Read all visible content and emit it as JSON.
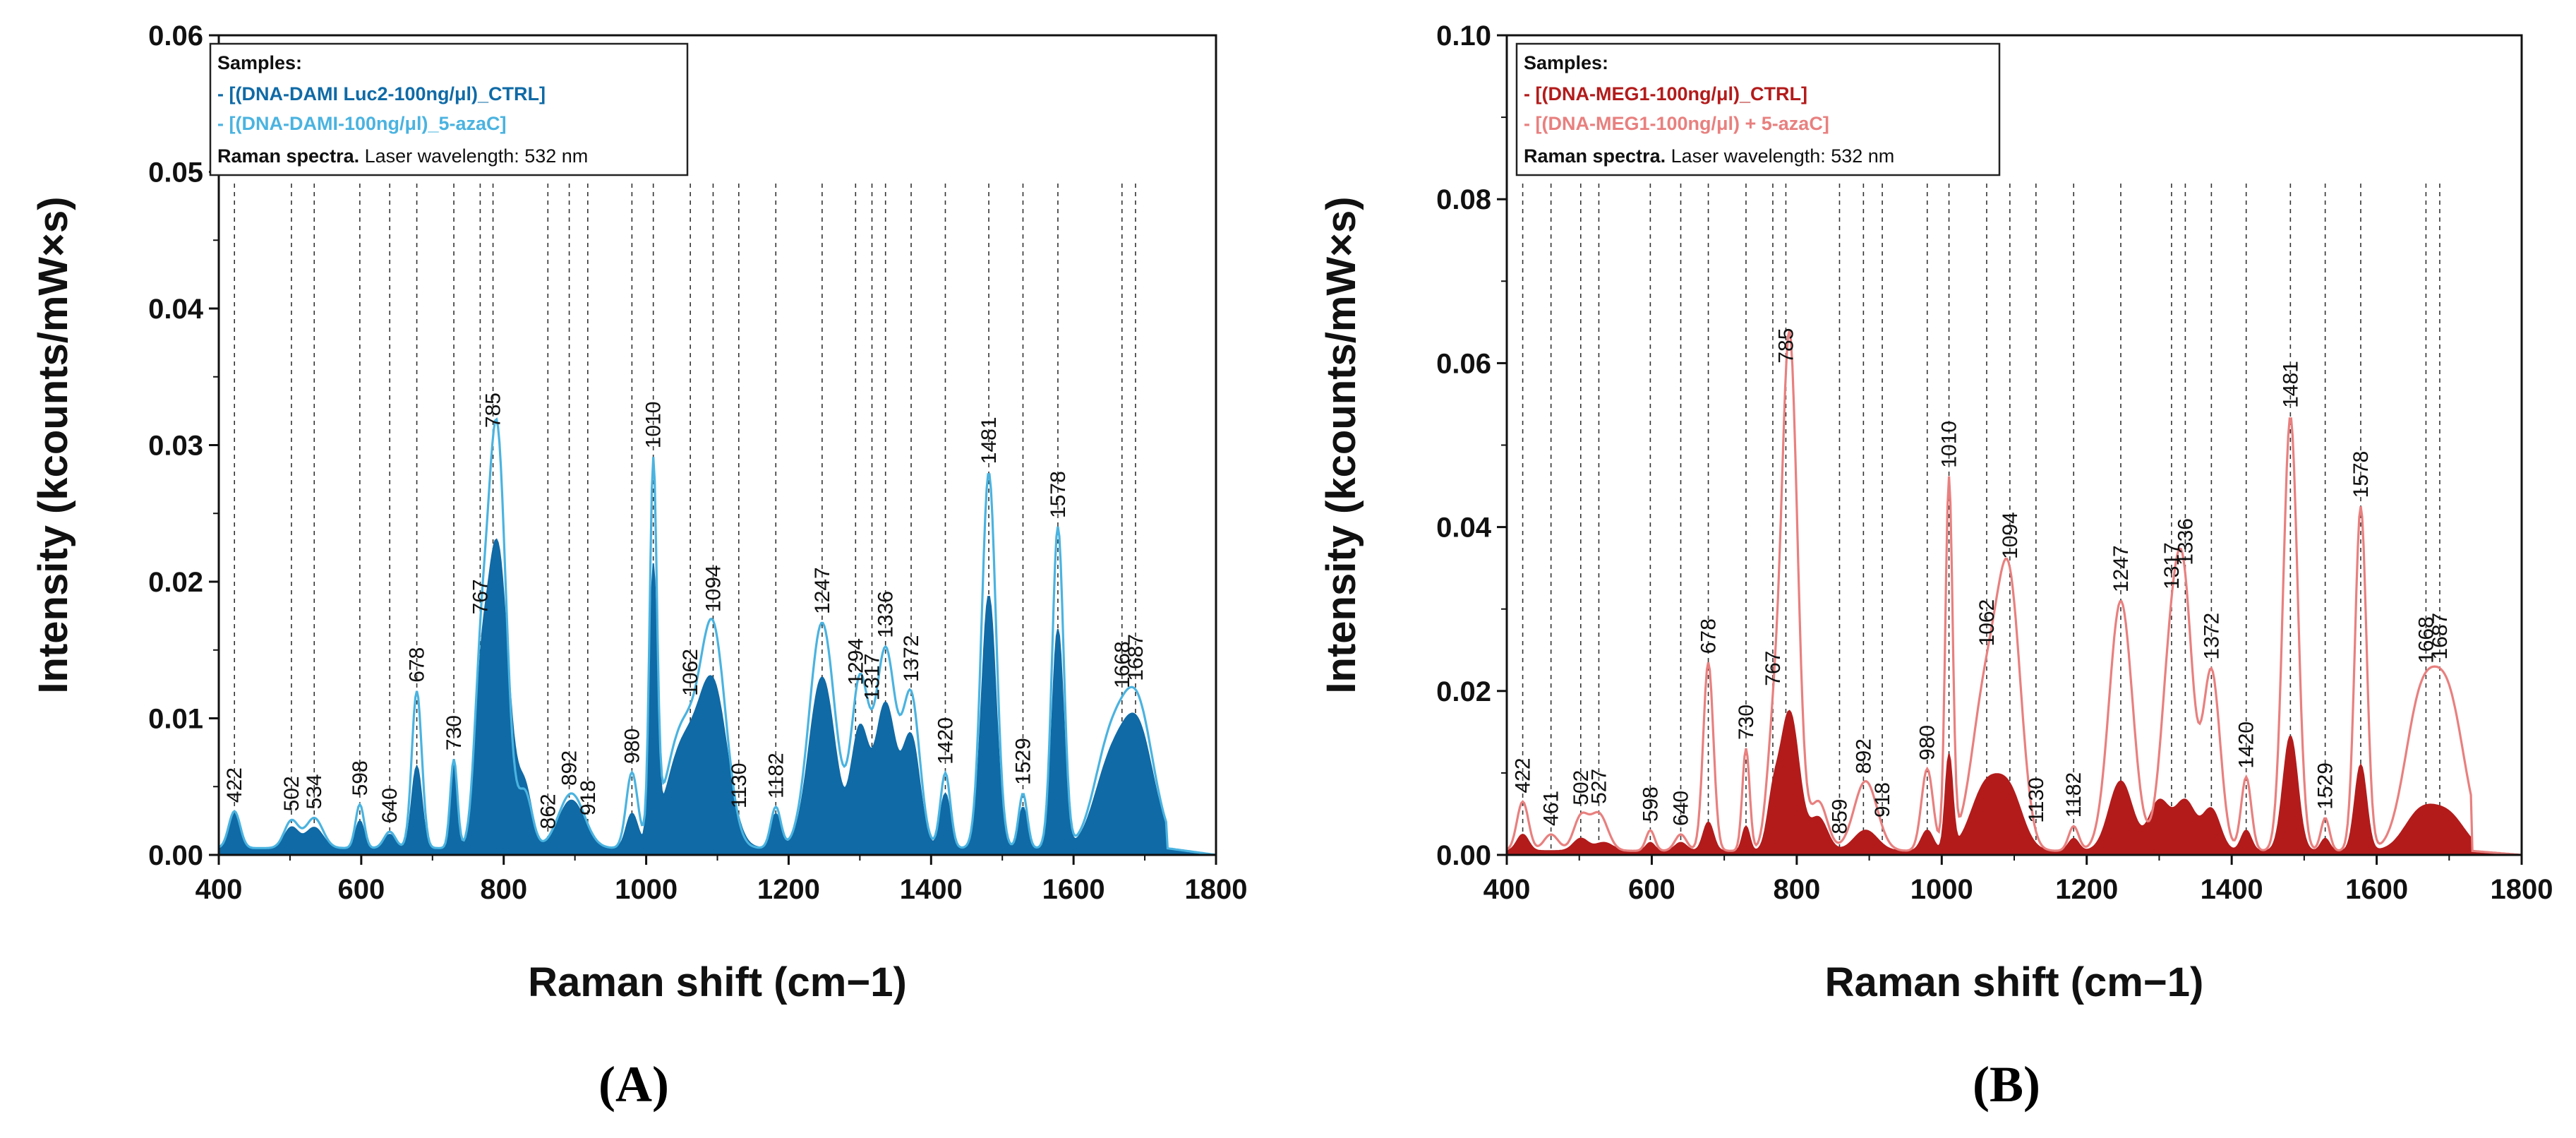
{
  "chart_data": [
    {
      "type": "area",
      "panel_label": "(A)",
      "xlabel": "Raman shift (cm−1)",
      "ylabel": "Intensity (kcounts/mW×s)",
      "xlim": [
        400,
        1800
      ],
      "ylim": [
        0,
        0.06
      ],
      "xticks": [
        400,
        600,
        800,
        1000,
        1200,
        1400,
        1600,
        1800
      ],
      "yticks": [
        0.0,
        0.01,
        0.02,
        0.03,
        0.04,
        0.05,
        0.06
      ],
      "ytick_labels": [
        "0.00",
        "0.01",
        "0.02",
        "0.03",
        "0.04",
        "0.05",
        "0.06"
      ],
      "grid": false,
      "legend": {
        "placement": "top-left",
        "heading": "Samples:",
        "entries": [
          "- [(DNA-DAMI Luc2-100ng/μl)_CTRL]",
          "- [(DNA-DAMI-100ng/μl)_5-azaC]"
        ],
        "footer_bold": "Raman spectra.",
        "footer": " Laser wavelength: 532 nm"
      },
      "peak_labels": [
        422,
        502,
        534,
        598,
        640,
        678,
        730,
        767,
        785,
        862,
        892,
        918,
        980,
        1010,
        1062,
        1094,
        1130,
        1182,
        1247,
        1294,
        1317,
        1336,
        1372,
        1420,
        1481,
        1529,
        1578,
        1668,
        1687
      ],
      "baseline": 0.0005,
      "series": [
        {
          "name": "- [(DNA-DAMI Luc2-100ng/μl)_CTRL]",
          "color": "#0f6aa6",
          "style": "filled",
          "bands": [
            [
              422,
              0.0025,
              8
            ],
            [
              502,
              0.0015,
              10
            ],
            [
              534,
              0.0015,
              12
            ],
            [
              598,
              0.002,
              6
            ],
            [
              640,
              0.001,
              8
            ],
            [
              678,
              0.006,
              7
            ],
            [
              730,
              0.0065,
              5
            ],
            [
              767,
              0.006,
              8
            ],
            [
              790,
              0.0225,
              16
            ],
            [
              830,
              0.004,
              10
            ],
            [
              895,
              0.0035,
              18
            ],
            [
              980,
              0.0025,
              8
            ],
            [
              1010,
              0.0195,
              5
            ],
            [
              1050,
              0.007,
              22
            ],
            [
              1094,
              0.0115,
              20
            ],
            [
              1182,
              0.0025,
              7
            ],
            [
              1247,
              0.0125,
              18
            ],
            [
              1300,
              0.0085,
              12
            ],
            [
              1336,
              0.0105,
              14
            ],
            [
              1372,
              0.008,
              12
            ],
            [
              1420,
              0.004,
              7
            ],
            [
              1481,
              0.0185,
              10
            ],
            [
              1529,
              0.003,
              6
            ],
            [
              1578,
              0.016,
              8
            ],
            [
              1650,
              0.0055,
              22
            ],
            [
              1690,
              0.0085,
              22
            ]
          ]
        },
        {
          "name": "- [(DNA-DAMI-100ng/μl)_5-azaC]",
          "color": "#4ab3e0",
          "style": "line",
          "bands": [
            [
              422,
              0.0027,
              8
            ],
            [
              502,
              0.002,
              10
            ],
            [
              534,
              0.0022,
              12
            ],
            [
              598,
              0.0032,
              6
            ],
            [
              640,
              0.0012,
              8
            ],
            [
              678,
              0.0115,
              7
            ],
            [
              730,
              0.0065,
              5
            ],
            [
              767,
              0.01,
              9
            ],
            [
              790,
              0.031,
              13
            ],
            [
              830,
              0.004,
              10
            ],
            [
              895,
              0.004,
              18
            ],
            [
              980,
              0.0055,
              8
            ],
            [
              1010,
              0.027,
              5
            ],
            [
              1050,
              0.0085,
              22
            ],
            [
              1094,
              0.0155,
              18
            ],
            [
              1182,
              0.003,
              7
            ],
            [
              1247,
              0.0165,
              18
            ],
            [
              1300,
              0.012,
              12
            ],
            [
              1336,
              0.0145,
              14
            ],
            [
              1372,
              0.011,
              12
            ],
            [
              1420,
              0.0055,
              7
            ],
            [
              1481,
              0.0275,
              10
            ],
            [
              1529,
              0.004,
              6
            ],
            [
              1578,
              0.0235,
              8
            ],
            [
              1650,
              0.007,
              22
            ],
            [
              1690,
              0.01,
              22
            ]
          ]
        }
      ]
    },
    {
      "type": "area",
      "panel_label": "(B)",
      "xlabel": "Raman shift (cm−1)",
      "ylabel": "Intensity (kcounts/mW×s)",
      "xlim": [
        400,
        1800
      ],
      "ylim": [
        0,
        0.1
      ],
      "xticks": [
        400,
        600,
        800,
        1000,
        1200,
        1400,
        1600,
        1800
      ],
      "yticks": [
        0.0,
        0.02,
        0.04,
        0.06,
        0.08,
        0.1
      ],
      "ytick_labels": [
        "0.00",
        "0.02",
        "0.04",
        "0.06",
        "0.08",
        "0.10"
      ],
      "grid": false,
      "legend": {
        "placement": "top-left",
        "heading": "Samples:",
        "entries": [
          "- [(DNA-MEG1-100ng/μl)_CTRL]",
          "- [(DNA-MEG1-100ng/μl) + 5-azaC]"
        ],
        "footer_bold": "Raman spectra.",
        "footer": " Laser wavelength: 532 nm"
      },
      "peak_labels": [
        422,
        461,
        502,
        527,
        598,
        640,
        678,
        730,
        767,
        785,
        859,
        892,
        918,
        980,
        1010,
        1062,
        1094,
        1130,
        1182,
        1247,
        1317,
        1336,
        1372,
        1420,
        1481,
        1529,
        1578,
        1668,
        1687
      ],
      "baseline": 0.0005,
      "series": [
        {
          "name": "- [(DNA-MEG1-100ng/μl)_CTRL]",
          "color": "#b31b1b",
          "style": "filled",
          "bands": [
            [
              422,
              0.002,
              8
            ],
            [
              502,
              0.0015,
              10
            ],
            [
              534,
              0.001,
              12
            ],
            [
              598,
              0.001,
              6
            ],
            [
              640,
              0.001,
              8
            ],
            [
              678,
              0.0035,
              7
            ],
            [
              730,
              0.003,
              5
            ],
            [
              767,
              0.005,
              8
            ],
            [
              790,
              0.017,
              13
            ],
            [
              830,
              0.004,
              12
            ],
            [
              895,
              0.0025,
              16
            ],
            [
              980,
              0.0025,
              8
            ],
            [
              1010,
              0.0115,
              5
            ],
            [
              1060,
              0.0075,
              20
            ],
            [
              1094,
              0.0065,
              18
            ],
            [
              1182,
              0.0015,
              7
            ],
            [
              1247,
              0.0085,
              16
            ],
            [
              1300,
              0.006,
              14
            ],
            [
              1336,
              0.006,
              14
            ],
            [
              1372,
              0.005,
              12
            ],
            [
              1420,
              0.0025,
              7
            ],
            [
              1481,
              0.014,
              10
            ],
            [
              1529,
              0.0015,
              6
            ],
            [
              1578,
              0.0105,
              8
            ],
            [
              1660,
              0.0045,
              22
            ],
            [
              1700,
              0.004,
              22
            ]
          ]
        },
        {
          "name": "- [(DNA-MEG1-100ng/μl) + 5-azaC]",
          "color": "#e8807f",
          "style": "line",
          "bands": [
            [
              422,
              0.006,
              8
            ],
            [
              461,
              0.002,
              10
            ],
            [
              502,
              0.004,
              10
            ],
            [
              527,
              0.0045,
              12
            ],
            [
              598,
              0.0025,
              6
            ],
            [
              640,
              0.002,
              8
            ],
            [
              678,
              0.023,
              7
            ],
            [
              730,
              0.0125,
              5
            ],
            [
              767,
              0.012,
              9
            ],
            [
              790,
              0.063,
              11
            ],
            [
              830,
              0.006,
              12
            ],
            [
              895,
              0.0085,
              16
            ],
            [
              980,
              0.01,
              8
            ],
            [
              1010,
              0.045,
              5
            ],
            [
              1062,
              0.02,
              20
            ],
            [
              1094,
              0.029,
              16
            ],
            [
              1182,
              0.003,
              7
            ],
            [
              1247,
              0.0305,
              16
            ],
            [
              1317,
              0.024,
              14
            ],
            [
              1336,
              0.024,
              12
            ],
            [
              1372,
              0.022,
              12
            ],
            [
              1420,
              0.009,
              7
            ],
            [
              1481,
              0.053,
              10
            ],
            [
              1529,
              0.004,
              6
            ],
            [
              1578,
              0.042,
              8
            ],
            [
              1660,
              0.017,
              22
            ],
            [
              1700,
              0.017,
              22
            ]
          ]
        }
      ]
    }
  ]
}
